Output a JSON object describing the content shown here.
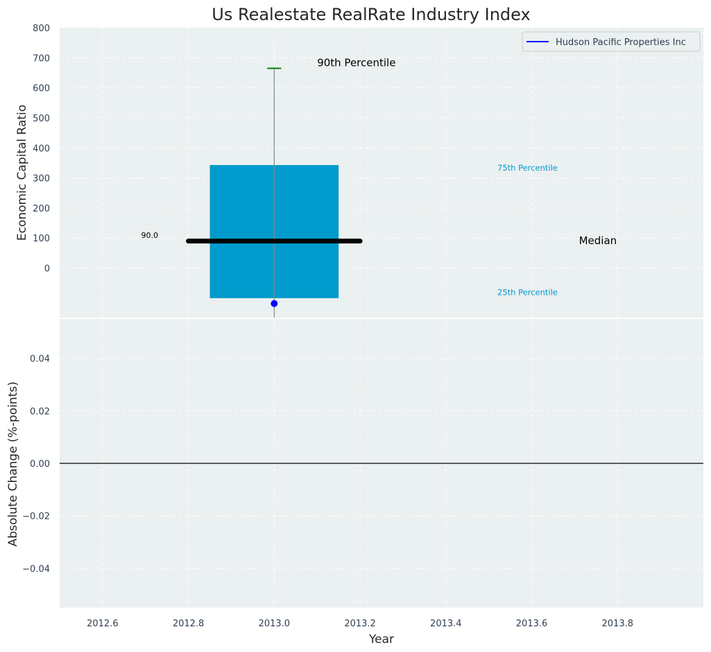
{
  "chart_data": [
    {
      "type": "box",
      "title": "Us Realestate RealRate Industry Index",
      "ylabel": "Economic Capital Ratio",
      "xlim": [
        2012.5,
        2014.0
      ],
      "ylim": [
        -165,
        800
      ],
      "yticks": [
        0,
        100,
        200,
        300,
        400,
        500,
        600,
        700,
        800
      ],
      "grid": true,
      "legend": {
        "placement": "top-right",
        "entries": [
          "Hudson Pacific Properties Inc"
        ]
      },
      "series": [
        {
          "name": "Hudson Pacific Properties Inc",
          "x": [
            2013.0
          ],
          "y": [
            -118
          ],
          "color": "#0000ff"
        }
      ],
      "box": {
        "x": 2013.0,
        "box_left": 2012.85,
        "box_right": 2013.15,
        "p25": -100,
        "p75": 343,
        "median": 90,
        "median_left": 2012.8,
        "median_right": 2013.2,
        "p90": 665,
        "whisker_low": -165,
        "box_color": "#009bcc",
        "p90_color": "#008000"
      },
      "annotations": [
        {
          "text": "90th Percentile",
          "x": 2013.1,
          "y": 672,
          "color": "#000000",
          "size": "large"
        },
        {
          "text": "75th Percentile",
          "x": 2013.52,
          "y": 325,
          "color": "#009bcc",
          "size": "small"
        },
        {
          "text": "Median",
          "x": 2013.71,
          "y": 80,
          "color": "#000000",
          "size": "large"
        },
        {
          "text": "25th Percentile",
          "x": 2013.52,
          "y": -90,
          "color": "#009bcc",
          "size": "small"
        },
        {
          "text": "90.0",
          "x": 2012.69,
          "y": 100,
          "color": "#000000",
          "size": "tiny"
        }
      ]
    },
    {
      "type": "line",
      "xlabel": "Year",
      "ylabel": "Absolute Change (%-points)",
      "xlim": [
        2012.5,
        2014.0
      ],
      "ylim": [
        -0.055,
        0.055
      ],
      "xticks": [
        "2012.6",
        "2012.8",
        "2013.0",
        "2013.2",
        "2013.4",
        "2013.6",
        "2013.8"
      ],
      "yticks": [
        "−0.04",
        "−0.02",
        "0.00",
        "0.02",
        "0.04"
      ],
      "ytick_values": [
        -0.04,
        -0.02,
        0.0,
        0.02,
        0.04
      ],
      "grid": true,
      "hline": 0.0,
      "series": []
    }
  ]
}
